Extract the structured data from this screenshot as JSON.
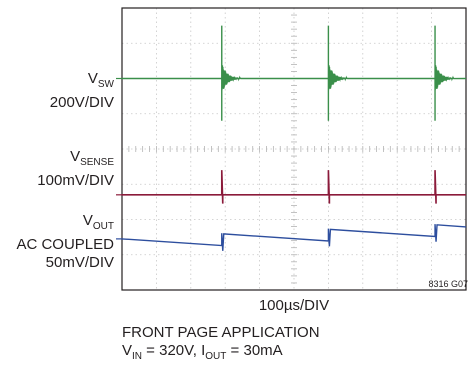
{
  "chart_data": {
    "type": "line",
    "title": "",
    "xlabel": "100µs/DIV",
    "figure_id": "8316 G07",
    "x_divisions": 10,
    "y_divisions": 8,
    "grid": true,
    "x_unit": "µs",
    "series": [
      {
        "name": "V_SW",
        "scale": "200V/DIV",
        "color": "#3a8f4a",
        "baseline_div": 2.0,
        "pulses_div": [
          2.9,
          6.0,
          9.1
        ],
        "spike_top_div": 0.5,
        "spike_bottom_div": 3.2,
        "ring_amp_div": 0.42,
        "ring_decay_div": 0.55
      },
      {
        "name": "V_SENSE",
        "scale": "100mV/DIV",
        "color": "#8b1a3a",
        "baseline_div": 5.3,
        "pulses_div": [
          2.9,
          6.0,
          9.1
        ],
        "spike_top_div": 4.6,
        "spike_bottom_div": 5.55
      },
      {
        "name": "V_OUT",
        "scale": "50mV/DIV",
        "coupling": "AC COUPLED",
        "color": "#2d4e9e",
        "start_div": 6.55,
        "sag_per_div": 0.065,
        "step_up_div": 0.33,
        "pulses_div": [
          2.9,
          6.0,
          9.1
        ]
      }
    ],
    "channel_labels": [
      {
        "main": "V",
        "sub": "SW",
        "scale": "200V/DIV"
      },
      {
        "main": "V",
        "sub": "SENSE",
        "scale": "100mV/DIV"
      },
      {
        "main": "V",
        "sub": "OUT",
        "coupling": "AC COUPLED",
        "scale": "50mV/DIV"
      }
    ]
  },
  "caption": {
    "line1": "FRONT PAGE APPLICATION",
    "line2_v": "V",
    "line2_v_sub": "IN",
    "line2_mid": " = 320V, I",
    "line2_i_sub": "OUT",
    "line2_end": " = 30mA"
  }
}
